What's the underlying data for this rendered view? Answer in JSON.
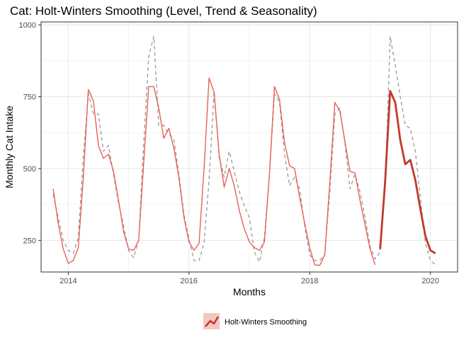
{
  "chart_data": {
    "type": "line",
    "title": "Cat: Holt-Winters Smoothing (Level, Trend & Seasonality)",
    "xlabel": "Months",
    "ylabel": "Monthly Cat Intake",
    "xlim": [
      2013.55,
      2020.45
    ],
    "ylim": [
      140,
      1010
    ],
    "x_ticks": [
      2014,
      2016,
      2018,
      2020
    ],
    "x_tick_labels": [
      "2014",
      "2016",
      "2018",
      "2020"
    ],
    "y_ticks": [
      250,
      500,
      750,
      1000
    ],
    "y_tick_labels": [
      "250",
      "500",
      "750",
      "1000"
    ],
    "grid": true,
    "legend_position": "bottom",
    "legend": [
      {
        "label": "Holt-Winters Smoothing",
        "color": "#c0392b"
      }
    ],
    "series": [
      {
        "name": "",
        "style": "dashed",
        "color": "#999999",
        "x": [
          2013.75,
          2013.833,
          2013.917,
          2014.0,
          2014.083,
          2014.167,
          2014.25,
          2014.333,
          2014.417,
          2014.5,
          2014.583,
          2014.667,
          2014.75,
          2014.833,
          2014.917,
          2015.0,
          2015.083,
          2015.167,
          2015.25,
          2015.333,
          2015.417,
          2015.5,
          2015.583,
          2015.667,
          2015.75,
          2015.833,
          2015.917,
          2016.0,
          2016.083,
          2016.167,
          2016.25,
          2016.333,
          2016.417,
          2016.5,
          2016.583,
          2016.667,
          2016.75,
          2016.833,
          2016.917,
          2017.0,
          2017.083,
          2017.167,
          2017.25,
          2017.333,
          2017.417,
          2017.5,
          2017.583,
          2017.667,
          2017.75,
          2017.833,
          2017.917,
          2018.0,
          2018.083,
          2018.167,
          2018.25,
          2018.333,
          2018.417,
          2018.5,
          2018.583,
          2018.667,
          2018.75,
          2018.833,
          2018.917,
          2019.0,
          2019.083,
          2019.167,
          2019.25,
          2019.333,
          2019.417,
          2019.5,
          2019.583,
          2019.667,
          2019.75,
          2019.833,
          2019.917,
          2020.0,
          2020.083
        ],
        "values": [
          410,
          330,
          250,
          215,
          205,
          260,
          540,
          760,
          690,
          690,
          560,
          580,
          480,
          380,
          300,
          215,
          190,
          250,
          590,
          890,
          960,
          650,
          650,
          620,
          600,
          480,
          340,
          255,
          180,
          180,
          240,
          460,
          770,
          540,
          470,
          560,
          490,
          420,
          370,
          330,
          210,
          175,
          260,
          480,
          760,
          730,
          550,
          440,
          470,
          430,
          300,
          200,
          180,
          180,
          200,
          420,
          690,
          710,
          590,
          430,
          480,
          420,
          330,
          230,
          185,
          210,
          430,
          960,
          860,
          750,
          650,
          640,
          560,
          400,
          240,
          180,
          165
        ]
      },
      {
        "name": "",
        "style": "solid",
        "color": "#e8605a",
        "x": [
          2013.75,
          2013.833,
          2013.917,
          2014.0,
          2014.083,
          2014.167,
          2014.25,
          2014.333,
          2014.417,
          2014.5,
          2014.583,
          2014.667,
          2014.75,
          2014.833,
          2014.917,
          2015.0,
          2015.083,
          2015.167,
          2015.25,
          2015.333,
          2015.417,
          2015.5,
          2015.583,
          2015.667,
          2015.75,
          2015.833,
          2015.917,
          2016.0,
          2016.083,
          2016.167,
          2016.25,
          2016.333,
          2016.417,
          2016.5,
          2016.583,
          2016.667,
          2016.75,
          2016.833,
          2016.917,
          2017.0,
          2017.083,
          2017.167,
          2017.25,
          2017.333,
          2017.417,
          2017.5,
          2017.583,
          2017.667,
          2017.75,
          2017.833,
          2017.917,
          2018.0,
          2018.083,
          2018.167,
          2018.25,
          2018.333,
          2018.417,
          2018.5,
          2018.583,
          2018.667,
          2018.75,
          2018.833,
          2018.917,
          2019.0,
          2019.083
        ],
        "values": [
          430,
          310,
          220,
          170,
          180,
          225,
          470,
          775,
          735,
          580,
          535,
          550,
          490,
          390,
          280,
          220,
          215,
          250,
          520,
          785,
          785,
          710,
          605,
          640,
          570,
          470,
          330,
          245,
          215,
          240,
          500,
          815,
          765,
          550,
          435,
          500,
          440,
          355,
          290,
          245,
          225,
          215,
          245,
          480,
          785,
          740,
          590,
          510,
          500,
          400,
          310,
          225,
          165,
          163,
          200,
          450,
          730,
          700,
          595,
          490,
          485,
          390,
          305,
          220,
          165
        ]
      },
      {
        "name": "Holt-Winters Smoothing",
        "style": "solid-bold",
        "color": "#c0392b",
        "x": [
          2019.167,
          2019.25,
          2019.333,
          2019.417,
          2019.5,
          2019.583,
          2019.667,
          2019.75,
          2019.833,
          2019.917,
          2020.0,
          2020.083
        ],
        "values": [
          220,
          455,
          770,
          730,
          600,
          515,
          530,
          460,
          360,
          265,
          215,
          205
        ]
      }
    ]
  }
}
